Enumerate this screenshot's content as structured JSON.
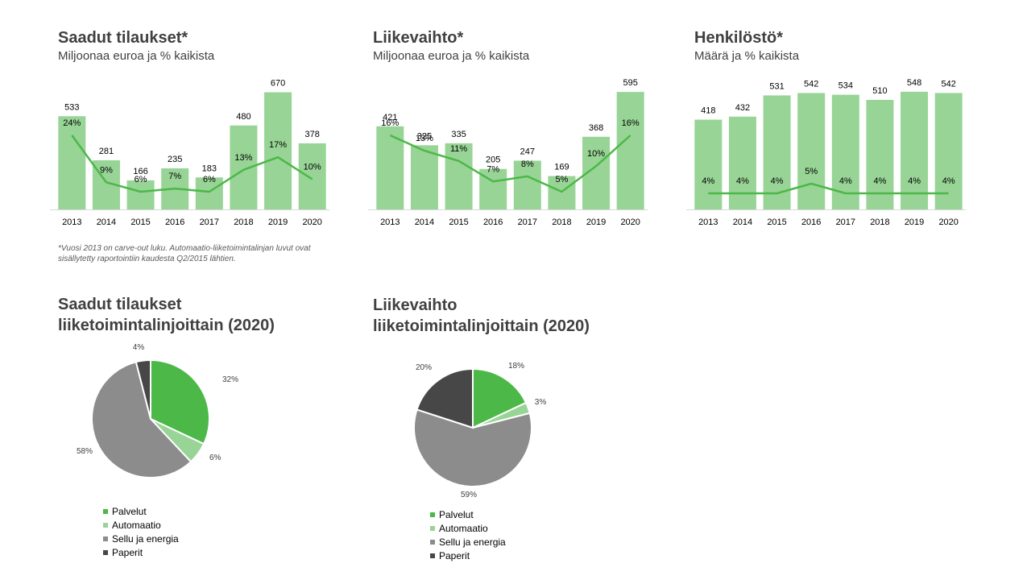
{
  "charts": {
    "orders": {
      "title": "Saadut tilaukset*",
      "subtitle": "Miljoonaa euroa ja % kaikista"
    },
    "revenue": {
      "title": "Liikevaihto*",
      "subtitle": "Miljoonaa euroa ja % kaikista"
    },
    "staff": {
      "title": "Henkilöstö*",
      "subtitle": "Määrä ja % kaikista"
    }
  },
  "footnote": "*Vuosi 2013 on carve-out luku. Automaatio-liiketoimintalinjan luvut ovat sisällytetty raportointiin kaudesta Q2/2015 lähtien.",
  "pies": {
    "orders": {
      "title_line1": "Saadut tilaukset",
      "title_line2": "liiketoimintalinjoittain  (2020)"
    },
    "revenue": {
      "title_line1": "Liikevaihto",
      "title_line2": "liiketoimintalinjoittain  (2020)"
    }
  },
  "legend": [
    "Palvelut",
    "Automaatio",
    "Sellu ja energia",
    "Paperit"
  ],
  "colors": {
    "bar": "#98d496",
    "line": "#4cb848",
    "palvelut": "#4cb848",
    "automaatio": "#98d496",
    "sellu": "#8c8c8c",
    "paperit": "#474747"
  },
  "chart_data": [
    {
      "type": "bar",
      "title": "Saadut tilaukset*",
      "subtitle": "Miljoonaa euroa ja % kaikista",
      "categories": [
        "2013",
        "2014",
        "2015",
        "2016",
        "2017",
        "2018",
        "2019",
        "2020"
      ],
      "values": [
        533,
        281,
        166,
        235,
        183,
        480,
        670,
        378
      ],
      "values_labels": [
        "533",
        "281",
        "166",
        "235",
        "183",
        "480",
        "670",
        "378"
      ],
      "percent": [
        24,
        9,
        6,
        7,
        6,
        13,
        17,
        10
      ],
      "percent_labels": [
        "24%",
        "9%",
        "6%",
        "7%",
        "6%",
        "13%",
        "17%",
        "10%"
      ],
      "ylim": [
        0,
        700
      ]
    },
    {
      "type": "bar",
      "title": "Liikevaihto*",
      "subtitle": "Miljoonaa euroa ja % kaikista",
      "categories": [
        "2013",
        "2014",
        "2015",
        "2016",
        "2017",
        "2018",
        "2019",
        "2020"
      ],
      "values": [
        421,
        325,
        335,
        205,
        247,
        169,
        368,
        595
      ],
      "values_labels": [
        "421",
        "325",
        "335",
        "205",
        "247",
        "169",
        "368",
        "595"
      ],
      "percent": [
        16,
        13,
        11,
        7,
        8,
        5,
        10,
        16
      ],
      "percent_labels": [
        "16%",
        "13%",
        "11%",
        "7%",
        "8%",
        "5%",
        "10%",
        "16%"
      ],
      "ylim": [
        0,
        620
      ]
    },
    {
      "type": "bar",
      "title": "Henkilöstö*",
      "subtitle": "Määrä ja % kaikista",
      "categories": [
        "2013",
        "2014",
        "2015",
        "2016",
        "2017",
        "2018",
        "2019",
        "2020"
      ],
      "values": [
        418,
        432,
        531,
        542,
        534,
        510,
        548,
        542
      ],
      "values_labels": [
        "418",
        "432",
        "531",
        "542",
        "534",
        "510",
        "548",
        "542"
      ],
      "percent": [
        4,
        4,
        4,
        5,
        4,
        4,
        4,
        4
      ],
      "percent_labels": [
        "4%",
        "4%",
        "4%",
        "5%",
        "4%",
        "4%",
        "4%",
        "4%"
      ],
      "ylim": [
        0,
        570
      ]
    },
    {
      "type": "pie",
      "title": "Saadut tilaukset liiketoimintalinjoittain  (2020)",
      "labels": [
        "Palvelut",
        "Automaatio",
        "Sellu ja energia",
        "Paperit"
      ],
      "values": [
        32,
        6,
        58,
        4
      ],
      "value_labels": [
        "32%",
        "6%",
        "58%",
        "4%"
      ]
    },
    {
      "type": "pie",
      "title": "Liikevaihto liiketoimintalinjoittain  (2020)",
      "labels": [
        "Palvelut",
        "Automaatio",
        "Sellu ja energia",
        "Paperit"
      ],
      "values": [
        18,
        3,
        59,
        20
      ],
      "value_labels": [
        "18%",
        "3%",
        "59%",
        "20%"
      ]
    }
  ]
}
